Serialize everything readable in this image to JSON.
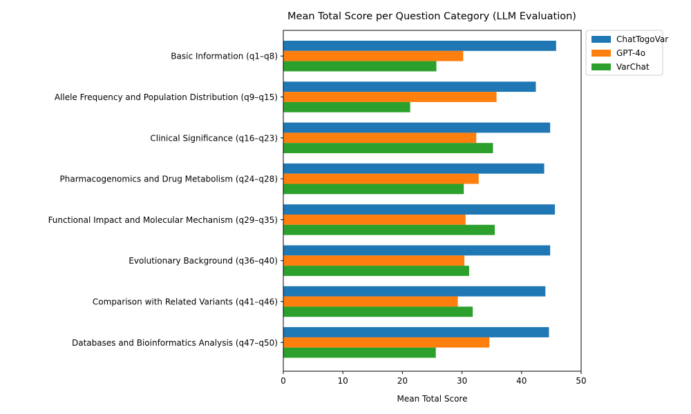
{
  "chart_data": {
    "type": "bar",
    "orientation": "horizontal",
    "title": "Mean Total Score per Question Category (LLM Evaluation)",
    "xlabel": "Mean Total Score",
    "ylabel": "",
    "xlim": [
      0,
      50
    ],
    "xticks": [
      0,
      10,
      20,
      30,
      40,
      50
    ],
    "grid": false,
    "legend_position": "outside-top-right",
    "categories": [
      "Basic Information (q1–q8)",
      "Allele Frequency and Population Distribution (q9–q15)",
      "Clinical Significance (q16–q23)",
      "Pharmacogenomics and Drug Metabolism (q24–q28)",
      "Functional Impact and Molecular Mechanism (q29–q35)",
      "Evolutionary Background (q36–q40)",
      "Comparison with Related Variants (q41–q46)",
      "Databases and Bioinformatics Analysis (q47–q50)"
    ],
    "series": [
      {
        "name": "ChatTogoVar",
        "color": "#1f77b4",
        "values": [
          45.8,
          42.4,
          44.8,
          43.8,
          45.6,
          44.8,
          44.0,
          44.6
        ]
      },
      {
        "name": "GPT-4o",
        "color": "#ff7f0e",
        "values": [
          30.2,
          35.8,
          32.4,
          32.8,
          30.6,
          30.4,
          29.3,
          34.6
        ]
      },
      {
        "name": "VarChat",
        "color": "#2ca02c",
        "values": [
          25.7,
          21.3,
          35.2,
          30.3,
          35.5,
          31.2,
          31.8,
          25.6
        ]
      }
    ]
  }
}
